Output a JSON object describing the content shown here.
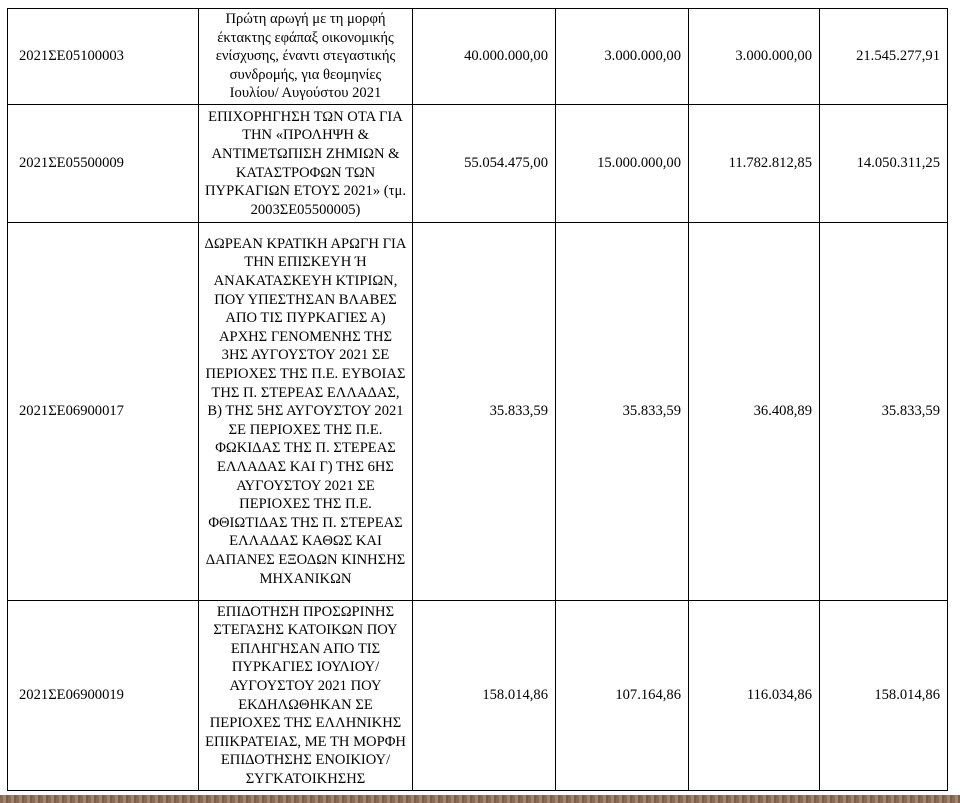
{
  "table": {
    "rows": [
      [
        "2021ΣΕ05100003",
        "Πρώτη αρωγή με τη μορφή έκτακτης εφάπαξ οικονομικής ενίσχυσης, έναντι στεγαστικής συνδρομής, για θεομηνίες Ιουλίου/ Αυγούστου 2021",
        "40.000.000,00",
        "3.000.000,00",
        "3.000.000,00",
        "21.545.277,91"
      ],
      [
        "2021ΣΕ05500009",
        "ΕΠΙΧΟΡΗΓΗΣΗ ΤΩΝ ΟΤΑ ΓΙΑ ΤΗΝ «ΠΡΟΛΗΨΗ & ΑΝΤΙΜΕΤΩΠΙΣΗ ΖΗΜΙΩΝ & ΚΑΤΑΣΤΡΟΦΩΝ ΤΩΝ ΠΥΡΚΑΓΙΩΝ ΕΤΟΥΣ 2021» (τμ. 2003ΣΕ05500005)",
        "55.054.475,00",
        "15.000.000,00",
        "11.782.812,85",
        "14.050.311,25"
      ],
      [
        "2021ΣΕ06900017",
        "ΔΩΡΕΑΝ ΚΡΑΤΙΚΗ ΑΡΩΓΗ ΓΙΑ ΤΗΝ ΕΠΙΣΚΕΥΗ Ή ΑΝΑΚΑΤΑΣΚΕΥΗ ΚΤΙΡΙΩΝ, ΠΟΥ ΥΠΕΣΤΗΣΑΝ ΒΛΑΒΕΣ ΑΠΟ ΤΙΣ ΠΥΡΚΑΓΙΕΣ Α) ΑΡΧΗΣ ΓΕΝΟΜΕΝΗΣ ΤΗΣ 3ΗΣ ΑΥΓΟΥΣΤΟΥ 2021 ΣΕ ΠΕΡΙΟΧΕΣ ΤΗΣ Π.Ε. ΕΥΒΟΙΑΣ ΤΗΣ Π. ΣΤΕΡΕΑΣ ΕΛΛΑΔΑΣ, Β) ΤΗΣ 5ΗΣ ΑΥΓΟΥΣΤΟΥ 2021 ΣΕ ΠΕΡΙΟΧΕΣ ΤΗΣ Π.Ε. ΦΩΚΙΔΑΣ ΤΗΣ Π. ΣΤΕΡΕΑΣ ΕΛΛΑΔΑΣ ΚΑΙ Γ) ΤΗΣ 6ΗΣ ΑΥΓΟΥΣΤΟΥ 2021 ΣΕ ΠΕΡΙΟΧΕΣ ΤΗΣ Π.Ε. ΦΘΙΩΤΙΔΑΣ ΤΗΣ Π. ΣΤΕΡΕΑΣ ΕΛΛΑΔΑΣ ΚΑΘΩΣ ΚΑΙ ΔΑΠΑΝΕΣ ΕΞΟΔΩΝ ΚΙΝΗΣΗΣ ΜΗΧΑΝΙΚΩΝ",
        "35.833,59",
        "35.833,59",
        "36.408,89",
        "35.833,59"
      ],
      [
        "2021ΣΕ06900019",
        "ΕΠΙΔΟΤΗΣΗ ΠΡΟΣΩΡΙΝΗΣ ΣΤΕΓΑΣΗΣ ΚΑΤΟΙΚΩΝ ΠΟΥ ΕΠΛΗΓΗΣΑΝ ΑΠΟ ΤΙΣ ΠΥΡΚΑΓΙΕΣ ΙΟΥΛΙΟΥ/ΑΥΓΟΥΣΤΟΥ 2021 ΠΟΥ ΕΚΔΗΛΩΘΗΚΑΝ ΣΕ ΠΕΡΙΟΧΕΣ ΤΗΣ ΕΛΛΗΝΙΚΗΣ ΕΠΙΚΡΑΤΕΙΑΣ, ΜΕ ΤΗ ΜΟΡΦΗ ΕΠΙΔΟΤΗΣΗΣ ΕΝΟΙΚΙΟΥ/ΣΥΓΚΑΤΟΙΚΗΣΗΣ",
        "158.014,86",
        "107.164,86",
        "116.034,86",
        "158.014,86"
      ]
    ]
  }
}
